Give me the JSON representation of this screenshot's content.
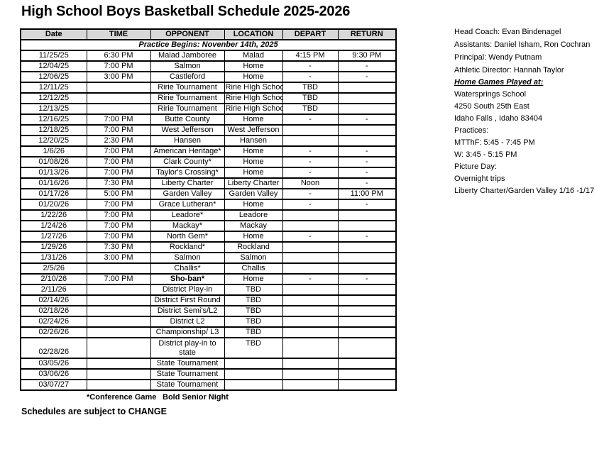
{
  "title": "High School Boys Basketball Schedule 2025-2026",
  "table": {
    "headers": [
      "Date",
      "TIME",
      "OPPONENT",
      "LOCATION",
      "DEPART",
      "RETURN"
    ],
    "practice_note": "Practice Begins: Novenber 14th, 2025",
    "rows": [
      {
        "date": "11/25/25",
        "time": "6:30 PM",
        "opponent": "Malad Jamboree",
        "location": "Malad",
        "depart": "4:15 PM",
        "return": "9:30 PM"
      },
      {
        "date": "12/04/25",
        "time": "7:00 PM",
        "opponent": "Salmon",
        "location": "Home",
        "depart": "-",
        "return": "-"
      },
      {
        "date": "12/06/25",
        "time": "3:00 PM",
        "opponent": "Castleford",
        "location": "Home",
        "depart": "-",
        "return": "-"
      },
      {
        "date": "12/11/25",
        "time": "",
        "opponent": "Ririe Tournament",
        "location": "Ririe HIgh School",
        "depart": "TBD",
        "return": ""
      },
      {
        "date": "12/12/25",
        "time": "",
        "opponent": "Ririe Tournament",
        "location": "Ririe HIgh School",
        "depart": "TBD",
        "return": ""
      },
      {
        "date": "12/13/25",
        "time": "",
        "opponent": "Ririe Tournament",
        "location": "Ririe HIgh School",
        "depart": "TBD",
        "return": ""
      },
      {
        "date": "12/16/25",
        "time": "7:00 PM",
        "opponent": "Butte County",
        "location": "Home",
        "depart": "-",
        "return": "-"
      },
      {
        "date": "12/18/25",
        "time": "7:00 PM",
        "opponent": "West Jefferson",
        "location": "West Jefferson",
        "depart": "",
        "return": ""
      },
      {
        "date": "12/20/25",
        "time": "2:30 PM",
        "opponent": "Hansen",
        "location": "Hansen",
        "depart": "",
        "return": ""
      },
      {
        "date": "1/6/26",
        "time": "7:00 PM",
        "opponent": "American Heritage*",
        "location": "Home",
        "depart": "-",
        "return": "-"
      },
      {
        "date": "01/08/26",
        "time": "7:00 PM",
        "opponent": "Clark County*",
        "location": "Home",
        "depart": "-",
        "return": "-"
      },
      {
        "date": "01/13/26",
        "time": "7:00 PM",
        "opponent": "Taylor's Crossing*",
        "location": "Home",
        "depart": "-",
        "return": "-"
      },
      {
        "date": "01/16/26",
        "time": "7:30 PM",
        "opponent": "Liberty Charter",
        "location": "Liberty Charter",
        "depart": "Noon",
        "return": "-"
      },
      {
        "date": "01/17/26",
        "time": "5:00 PM",
        "opponent": "Garden Valley",
        "location": "Garden Valley",
        "depart": "-",
        "return": "11:00 PM"
      },
      {
        "date": "01/20/26",
        "time": "7:00 PM",
        "opponent": "Grace Lutheran*",
        "location": "Home",
        "depart": "-",
        "return": "-"
      },
      {
        "date": "1/22/26",
        "time": "7:00 PM",
        "opponent": "Leadore*",
        "location": "Leadore",
        "depart": "",
        "return": ""
      },
      {
        "date": "1/24/26",
        "time": "7:00 PM",
        "opponent": "Mackay*",
        "location": "Mackay",
        "depart": "",
        "return": ""
      },
      {
        "date": "1/27/26",
        "time": "7:00 PM",
        "opponent": "North Gem*",
        "location": "Home",
        "depart": "-",
        "return": "-"
      },
      {
        "date": "1/29/26",
        "time": "7:30 PM",
        "opponent": "Rockland*",
        "location": "Rockland",
        "depart": "",
        "return": ""
      },
      {
        "date": "1/31/26",
        "time": "3:00 PM",
        "opponent": "Salmon",
        "location": "Salmon",
        "depart": "",
        "return": ""
      },
      {
        "date": "2/5/26",
        "time": "",
        "opponent": "Challis*",
        "location": "Challis",
        "depart": "",
        "return": ""
      },
      {
        "date": "2/10/26",
        "time": "7:00 PM",
        "opponent": "Sho-ban*",
        "location": "Home",
        "depart": "-",
        "return": "-",
        "bold": true
      },
      {
        "date": "2/11/26",
        "time": "",
        "opponent": "District Play-in",
        "location": "TBD",
        "depart": "",
        "return": ""
      },
      {
        "date": "02/14/26",
        "time": "",
        "opponent": "District First Round",
        "location": "TBD",
        "depart": "",
        "return": ""
      },
      {
        "date": "02/18/26",
        "time": "",
        "opponent": "District Semi's/L2",
        "location": "TBD",
        "depart": "",
        "return": ""
      },
      {
        "date": "02/24/26",
        "time": "",
        "opponent": "District L2",
        "location": "TBD",
        "depart": "",
        "return": ""
      },
      {
        "date": "02/26/26",
        "time": "",
        "opponent": "Championship/ L3",
        "location": "TBD",
        "depart": "",
        "return": ""
      },
      {
        "date": "02/28/26",
        "time": "",
        "opponent": "District play-in to state",
        "location": "TBD",
        "depart": "",
        "return": "",
        "tall": true
      },
      {
        "date": "03/05/26",
        "time": "",
        "opponent": "State Tournament",
        "location": "",
        "depart": "",
        "return": ""
      },
      {
        "date": "03/06/26",
        "time": "",
        "opponent": "State Tournament",
        "location": "",
        "depart": "",
        "return": ""
      },
      {
        "date": "03/07/27",
        "time": "",
        "opponent": "State Tournament",
        "location": "",
        "depart": "",
        "return": ""
      }
    ]
  },
  "footnotes": {
    "conference": "*Conference Game",
    "senior": "Bold Senior Night"
  },
  "change_note": "Schedules are subject to CHANGE",
  "info_panel": {
    "staff": [
      "Head Coach: Evan Bindenagel",
      "Assistants: Daniel Isham, Ron Cochran"
    ],
    "admin": [
      "Principal: Wendy Putnam",
      "Athletic Director: Hannah Taylor"
    ],
    "home_games": {
      "heading": "Home Games Played at:",
      "lines": [
        "Watersprings School",
        "4250 South 25th East",
        "Idaho Falls , Idaho 83404"
      ]
    },
    "practices": {
      "heading": "Practices:",
      "lines": [
        "MTThF: 5:45 - 7:45 PM",
        "W: 3:45 - 5:15 PM"
      ]
    },
    "picture_day": "Picture Day:",
    "overnight": {
      "heading": "Overnight trips",
      "lines": [
        "Liberty Charter/Garden Valley 1/16 -1/17"
      ]
    }
  }
}
